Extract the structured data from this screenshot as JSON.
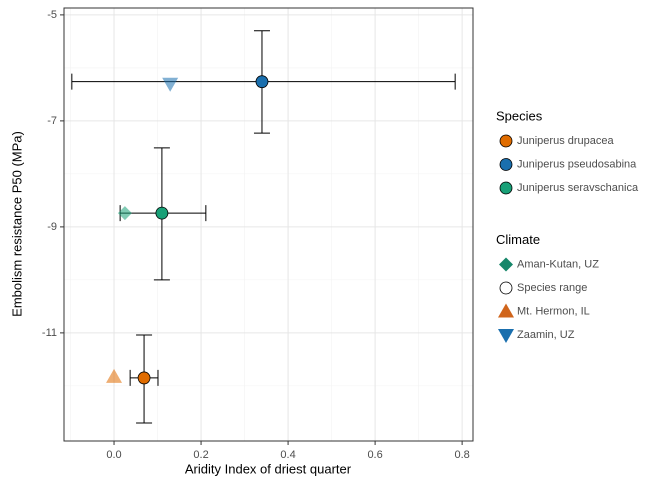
{
  "chart_data": {
    "type": "scatter",
    "x_label": "Aridity Index of driest quarter",
    "y_label": "Embolism resistance P50 (MPa)",
    "xlim": [
      -0.115,
      0.825
    ],
    "ylim": [
      -13.04,
      -4.87
    ],
    "xticks": [
      {
        "value": 0,
        "label": "0.0"
      },
      0.2,
      0.4,
      0.6,
      0.8
    ],
    "yticks": [
      -5,
      -7,
      -9,
      -11
    ],
    "x_minor_ticks": [
      -0.1,
      0.1,
      0.3,
      0.5,
      0.7
    ],
    "y_minor_ticks": [
      -6,
      -8,
      -10,
      -12
    ],
    "grid": true,
    "legends": [
      {
        "title": "Species",
        "items": [
          {
            "name": "Juniperus drupacea",
            "color": "#e06c00",
            "shape": "circle"
          },
          {
            "name": "Juniperus pseudosabina",
            "color": "#1a6fae",
            "shape": "circle"
          },
          {
            "name": "Juniperus seravschanica",
            "color": "#18a077",
            "shape": "circle"
          }
        ]
      },
      {
        "title": "Climate",
        "items": [
          {
            "name": "Aman-Kutan, UZ",
            "color": "#16866a",
            "shape": "diamond"
          },
          {
            "name": "Species range",
            "color": "#ffffff",
            "shape": "circle"
          },
          {
            "name": "Mt. Hermon, IL",
            "color": "#d0651c",
            "shape": "triangle-up"
          },
          {
            "name": "Zaamin, UZ",
            "color": "#1a6fae",
            "shape": "triangle-down"
          }
        ]
      }
    ],
    "points": [
      {
        "x": 0.34,
        "y": -6.26,
        "xmin": -0.097,
        "xmax": 0.784,
        "ymin": -7.23,
        "ymax": -5.3,
        "color": "#1a6fae",
        "shape": "circle",
        "opacity": 1
      },
      {
        "x": 0.129,
        "y": -6.3,
        "color": "#1a6fae",
        "shape": "triangle-down",
        "opacity": 0.55
      },
      {
        "x": 0.11,
        "y": -8.74,
        "xmin": 0.014,
        "xmax": 0.211,
        "ymin": -10.0,
        "ymax": -7.51,
        "color": "#18a077",
        "shape": "circle",
        "opacity": 1
      },
      {
        "x": 0.025,
        "y": -8.74,
        "color": "#18a077",
        "shape": "diamond",
        "opacity": 0.55
      },
      {
        "x": 0.069,
        "y": -11.85,
        "xmin": 0.037,
        "xmax": 0.101,
        "ymin": -12.7,
        "ymax": -11.04,
        "color": "#e06c00",
        "shape": "circle",
        "opacity": 1
      },
      {
        "x": 0.0,
        "y": -11.83,
        "color": "#e06c00",
        "shape": "triangle-up",
        "opacity": 0.55
      }
    ]
  }
}
